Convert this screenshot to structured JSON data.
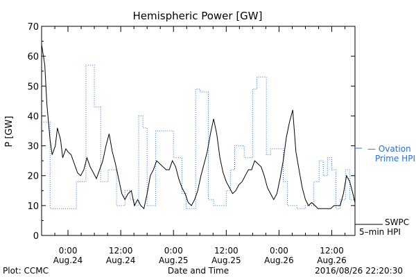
{
  "chart_data": {
    "type": "line",
    "title": "Hemispheric Power [GW]",
    "ylabel": "P [GW]",
    "xlabel": "Date and Time",
    "ylim": [
      0,
      70
    ],
    "xlim": [
      -0.25,
      2.72
    ],
    "x_unit": "days since 0:00 Aug.24",
    "y_ticks": [
      0,
      10,
      20,
      30,
      40,
      50,
      60,
      70
    ],
    "x_ticks": [
      {
        "x": 0.0,
        "line1": "0:00",
        "line2": "Aug.24"
      },
      {
        "x": 0.5,
        "line1": "12:00",
        "line2": "Aug.24"
      },
      {
        "x": 1.0,
        "line1": "0:00",
        "line2": "Aug.25"
      },
      {
        "x": 1.5,
        "line1": "12:00",
        "line2": "Aug.25"
      },
      {
        "x": 2.0,
        "line1": "0:00",
        "line2": "Aug.26"
      },
      {
        "x": 2.5,
        "line1": "12:00",
        "line2": "Aug.26"
      }
    ],
    "grid": false,
    "series": [
      {
        "name": "Ovation Prime HPI",
        "legend_line1": "— Ovation",
        "legend_line2": "Prime HPI",
        "style": "dotted-step",
        "color": "#2a6fdb",
        "x": [
          -0.25,
          -0.17,
          -0.17,
          0.08,
          0.08,
          0.17,
          0.17,
          0.25,
          0.25,
          0.31,
          0.31,
          0.38,
          0.38,
          0.46,
          0.46,
          0.54,
          0.54,
          0.59,
          0.59,
          0.63,
          0.63,
          0.67,
          0.67,
          0.71,
          0.71,
          0.75,
          0.75,
          0.83,
          0.83,
          0.92,
          0.92,
          1.0,
          1.0,
          1.08,
          1.08,
          1.12,
          1.12,
          1.21,
          1.21,
          1.25,
          1.25,
          1.33,
          1.33,
          1.38,
          1.38,
          1.5,
          1.5,
          1.54,
          1.54,
          1.58,
          1.58,
          1.67,
          1.67,
          1.75,
          1.75,
          1.79,
          1.79,
          1.88,
          1.88,
          1.92,
          1.92,
          1.96,
          1.96,
          2.04,
          2.04,
          2.08,
          2.08,
          2.17,
          2.17,
          2.25,
          2.25,
          2.33,
          2.33,
          2.38,
          2.38,
          2.42,
          2.42,
          2.46,
          2.46,
          2.5,
          2.5,
          2.54,
          2.54,
          2.58,
          2.58,
          2.63,
          2.63,
          2.67,
          2.67,
          2.72
        ],
        "y": [
          38,
          38,
          9,
          9,
          18,
          18,
          57,
          57,
          43,
          43,
          18,
          18,
          22,
          22,
          10,
          10,
          15,
          15,
          12,
          12,
          10,
          10,
          40,
          40,
          36,
          36,
          10,
          10,
          35,
          35,
          35,
          35,
          26,
          26,
          14,
          14,
          9,
          9,
          49,
          49,
          48,
          48,
          12,
          12,
          10,
          10,
          15,
          15,
          22,
          22,
          30,
          30,
          26,
          26,
          49,
          49,
          53,
          53,
          27,
          27,
          29,
          29,
          29,
          29,
          18,
          18,
          10,
          10,
          9,
          9,
          10,
          10,
          18,
          18,
          25,
          25,
          20,
          20,
          26,
          26,
          22,
          22,
          9,
          9,
          12,
          12,
          22,
          22,
          12,
          12
        ]
      },
      {
        "name": "SWPC 5-min HPI",
        "legend_line1": "SWPC",
        "legend_line2": "5–min HPI",
        "style": "solid",
        "color": "#000000",
        "x": [
          -0.25,
          -0.22,
          -0.2,
          -0.17,
          -0.15,
          -0.12,
          -0.1,
          -0.07,
          -0.05,
          -0.02,
          0.0,
          0.03,
          0.06,
          0.09,
          0.12,
          0.15,
          0.18,
          0.21,
          0.24,
          0.27,
          0.3,
          0.33,
          0.36,
          0.39,
          0.42,
          0.45,
          0.48,
          0.51,
          0.54,
          0.57,
          0.6,
          0.63,
          0.66,
          0.69,
          0.72,
          0.75,
          0.78,
          0.81,
          0.84,
          0.87,
          0.9,
          0.93,
          0.96,
          0.99,
          1.02,
          1.05,
          1.08,
          1.11,
          1.14,
          1.17,
          1.2,
          1.23,
          1.26,
          1.29,
          1.32,
          1.35,
          1.38,
          1.41,
          1.44,
          1.47,
          1.5,
          1.53,
          1.56,
          1.59,
          1.62,
          1.65,
          1.68,
          1.71,
          1.74,
          1.77,
          1.8,
          1.83,
          1.86,
          1.89,
          1.92,
          1.95,
          1.98,
          2.01,
          2.04,
          2.07,
          2.1,
          2.13,
          2.16,
          2.19,
          2.22,
          2.25,
          2.28,
          2.31,
          2.34,
          2.37,
          2.4,
          2.43,
          2.46,
          2.49,
          2.52,
          2.55,
          2.58,
          2.61,
          2.64,
          2.67,
          2.7,
          2.72
        ],
        "y": [
          64,
          57,
          44,
          32,
          27,
          30,
          36,
          32,
          26,
          29,
          28,
          27,
          24,
          21,
          20,
          22,
          26,
          23,
          21,
          19,
          22,
          25,
          30,
          34,
          28,
          24,
          19,
          14,
          12,
          14,
          15,
          10,
          12,
          10,
          9,
          14,
          20,
          22,
          25,
          24,
          23,
          22,
          22,
          25,
          23,
          19,
          16,
          14,
          11,
          10,
          12,
          15,
          20,
          24,
          28,
          34,
          39,
          34,
          26,
          21,
          18,
          16,
          14,
          15,
          17,
          18,
          20,
          22,
          22,
          25,
          24,
          23,
          20,
          16,
          14,
          12,
          14,
          19,
          25,
          33,
          38,
          42,
          28,
          22,
          16,
          12,
          10,
          11,
          10,
          9,
          9,
          9,
          9,
          9,
          10,
          10,
          10,
          14,
          20,
          18,
          14,
          11
        ]
      }
    ]
  },
  "footer": {
    "plot_credit": "Plot: CCMC",
    "timestamp": "2016/08/26 22:20:30"
  }
}
